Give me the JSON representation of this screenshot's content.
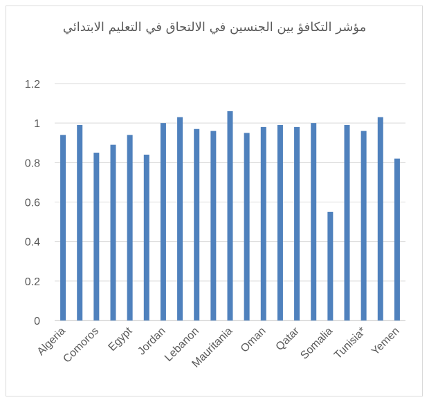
{
  "chart_data": {
    "type": "bar",
    "title": "مؤشر التكافؤ بين الجنسين في الالتحاق في التعليم الابتدائي",
    "xlabel": "",
    "ylabel": "",
    "ylim": [
      0,
      1.2
    ],
    "yticks": [
      "0",
      "0.2",
      "0.4",
      "0.6",
      "0.8",
      "1",
      "1.2"
    ],
    "ytick_values": [
      0,
      0.2,
      0.4,
      0.6,
      0.8,
      1.0,
      1.2
    ],
    "grid": true,
    "legend": "none",
    "bar_color": "#4f81bd",
    "categories": [
      "Algeria",
      "",
      "Comoros",
      "",
      "Egypt",
      "",
      "Jordan",
      "",
      "Lebanon",
      "",
      "Mauritania",
      "",
      "Oman",
      "",
      "Qatar",
      "",
      "Somalia",
      "",
      "Tunisia*",
      "",
      "Yemen"
    ],
    "values": [
      0.94,
      0.99,
      0.85,
      0.89,
      0.94,
      0.84,
      1.0,
      1.03,
      0.97,
      0.96,
      1.06,
      0.95,
      0.98,
      0.99,
      0.98,
      1.0,
      0.55,
      0.99,
      0.96,
      1.03,
      0.82
    ]
  }
}
